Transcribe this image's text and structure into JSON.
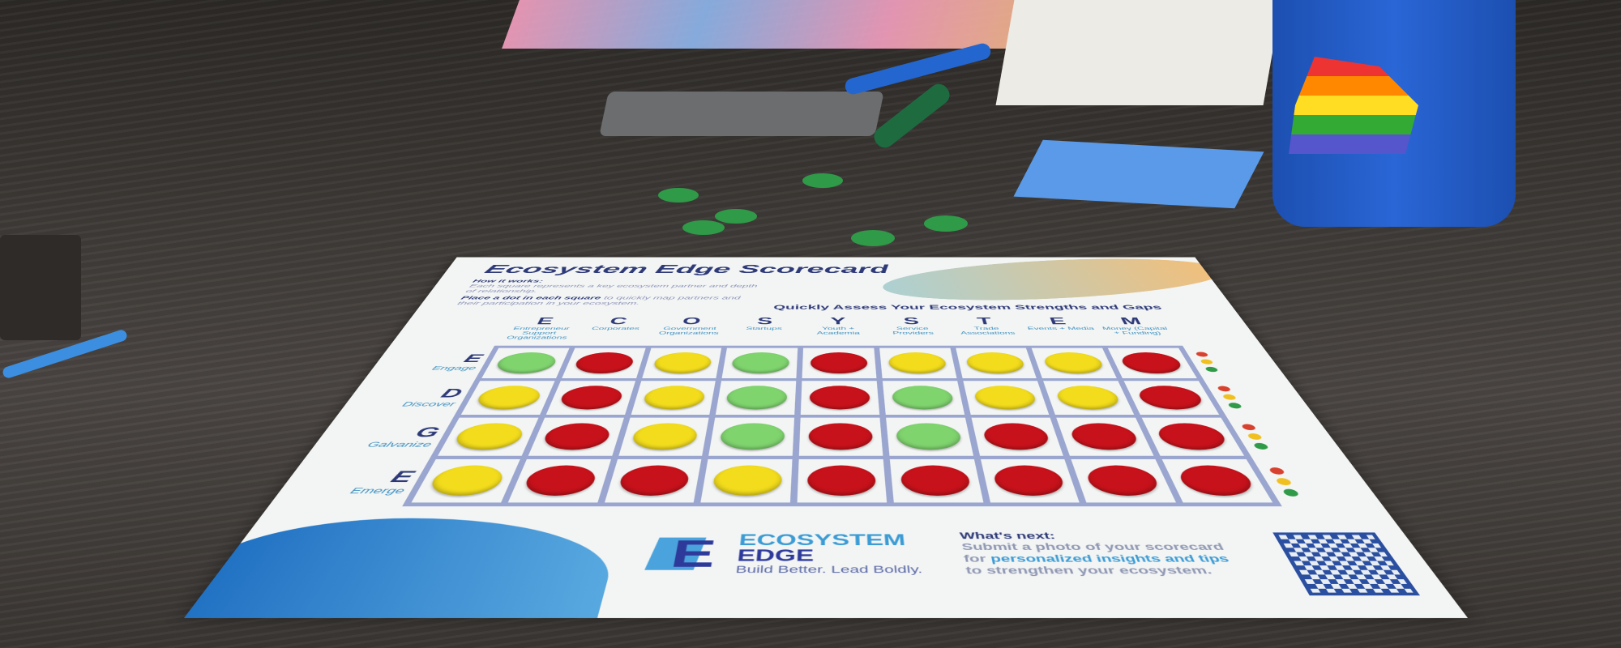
{
  "scorecard": {
    "title": "Ecosystem Edge Scorecard",
    "how_heading": "How it works:",
    "how_text": "Each square represents a key ecosystem partner and depth of relationship.",
    "place_bold": "Place a dot in each square",
    "place_text": " to quickly map partners and their participation in your ecosystem.",
    "tagline": "Quickly Assess Your Ecosystem Strengths and Gaps",
    "columns": [
      {
        "letter": "E",
        "name": "Entrepreneur Support Organizations"
      },
      {
        "letter": "C",
        "name": "Corporates"
      },
      {
        "letter": "O",
        "name": "Government Organizations"
      },
      {
        "letter": "S",
        "name": "Startups"
      },
      {
        "letter": "Y",
        "name": "Youth + Academia"
      },
      {
        "letter": "S",
        "name": "Service Providers"
      },
      {
        "letter": "T",
        "name": "Trade Associations"
      },
      {
        "letter": "E",
        "name": "Events + Media"
      },
      {
        "letter": "M",
        "name": "Money (Capital + Funding)"
      }
    ],
    "rows": [
      {
        "letter": "E",
        "name": "Engage",
        "chips": [
          "green",
          "red",
          "yellow",
          "green",
          "red",
          "yellow",
          "yellow",
          "yellow",
          "red"
        ]
      },
      {
        "letter": "D",
        "name": "Discover",
        "chips": [
          "yellow",
          "red",
          "yellow",
          "green",
          "red",
          "green",
          "yellow",
          "yellow",
          "red"
        ]
      },
      {
        "letter": "G",
        "name": "Galvanize",
        "chips": [
          "yellow",
          "red",
          "yellow",
          "green",
          "red",
          "green",
          "red",
          "red",
          "red"
        ]
      },
      {
        "letter": "E",
        "name": "Emerge",
        "chips": [
          "yellow",
          "red",
          "red",
          "yellow",
          "red",
          "red",
          "red",
          "red",
          "red"
        ]
      }
    ],
    "chip_colors": {
      "green": "#7fd46e",
      "red": "#c8121b",
      "yellow": "#f2dc1c"
    },
    "legend_colors": [
      "#d8412e",
      "#f0c020",
      "#2f9a48"
    ],
    "logo": {
      "line1": "ECOSYSTEM",
      "line2": "EDGE",
      "slogan": "Build Better.  Lead Boldly."
    },
    "next": {
      "heading": "What's next:",
      "text1": "Submit a photo of your scorecard",
      "text2a": "for ",
      "text2b": "personalized insights and tips",
      "text3": "to strengthen your ecosystem."
    }
  }
}
